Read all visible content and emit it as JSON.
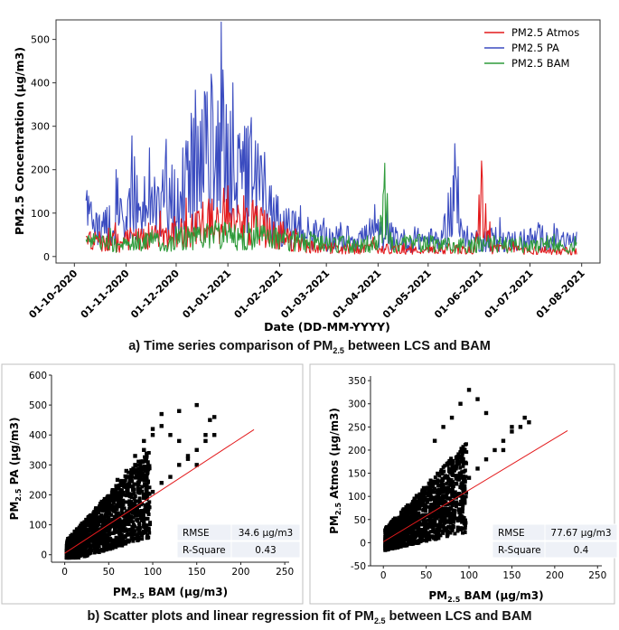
{
  "captions": {
    "a_pre": "a) Time series comparison of PM",
    "a_sub": "2.5",
    "a_post": " between LCS and BAM",
    "b_pre": "b) Scatter plots and linear regression fit of PM",
    "b_sub": "2.5",
    "b_post": " between LCS and BAM"
  },
  "chart_data": [
    {
      "type": "line",
      "title": "",
      "xlabel": "Date (DD-MM-YYYY)",
      "ylabel": "PM2.5 Concentration (µg/m3)",
      "x_tick_labels": [
        "01-10-2020",
        "01-11-2020",
        "01-12-2020",
        "01-01-2021",
        "01-02-2021",
        "01-03-2021",
        "01-04-2021",
        "01-05-2021",
        "01-06-2021",
        "01-07-2021",
        "01-08-2021"
      ],
      "x_tick_days": [
        0,
        31,
        61,
        92,
        123,
        151,
        182,
        212,
        243,
        273,
        304
      ],
      "xlim_days": [
        -11,
        315
      ],
      "ylim": [
        -15,
        545
      ],
      "y_ticks": [
        0,
        100,
        200,
        300,
        400,
        500
      ],
      "legend_position": "top-right",
      "series": [
        {
          "name": "PM2.5 Atmos",
          "color": "#e31a1c",
          "days": [
            7,
            14,
            21,
            28,
            35,
            42,
            49,
            56,
            63,
            70,
            77,
            84,
            88,
            91,
            95,
            100,
            105,
            110,
            115,
            120,
            125,
            130,
            135,
            140,
            145,
            150,
            160,
            170,
            180,
            190,
            200,
            210,
            220,
            230,
            240,
            244,
            250,
            260,
            270,
            280,
            290,
            300
          ],
          "values": [
            60,
            55,
            70,
            45,
            80,
            75,
            90,
            70,
            110,
            95,
            130,
            140,
            150,
            190,
            120,
            160,
            130,
            140,
            100,
            90,
            80,
            60,
            55,
            40,
            40,
            35,
            30,
            30,
            35,
            30,
            25,
            28,
            30,
            30,
            28,
            220,
            30,
            28,
            25,
            25,
            22,
            20
          ]
        },
        {
          "name": "PM2.5 PA",
          "color": "#3b4cc0",
          "days": [
            7,
            12,
            16,
            20,
            25,
            30,
            36,
            40,
            45,
            50,
            55,
            60,
            65,
            70,
            74,
            78,
            82,
            85,
            88,
            91,
            95,
            98,
            102,
            106,
            110,
            114,
            118,
            122,
            126,
            130,
            135,
            140,
            145,
            150,
            160,
            170,
            180,
            190,
            200,
            210,
            220,
            228,
            232,
            236,
            240,
            250,
            260,
            270,
            280,
            290,
            300
          ],
          "values": [
            180,
            120,
            150,
            110,
            200,
            150,
            230,
            160,
            250,
            180,
            270,
            200,
            250,
            330,
            300,
            380,
            420,
            300,
            540,
            350,
            400,
            280,
            300,
            320,
            260,
            240,
            180,
            150,
            130,
            110,
            100,
            90,
            80,
            75,
            70,
            75,
            90,
            80,
            60,
            70,
            60,
            260,
            75,
            70,
            65,
            70,
            60,
            65,
            75,
            65,
            60
          ]
        },
        {
          "name": "PM2.5 BAM",
          "color": "#2e9b3a",
          "days": [
            7,
            14,
            21,
            28,
            35,
            42,
            49,
            56,
            63,
            70,
            77,
            84,
            91,
            98,
            105,
            112,
            119,
            126,
            133,
            140,
            147,
            154,
            161,
            168,
            175,
            182,
            186,
            190,
            200,
            210,
            220,
            230,
            240,
            250,
            260,
            270,
            280,
            290,
            300
          ],
          "values": [
            60,
            50,
            55,
            40,
            65,
            60,
            70,
            55,
            75,
            70,
            80,
            90,
            85,
            70,
            80,
            75,
            70,
            65,
            60,
            55,
            50,
            45,
            50,
            45,
            40,
            55,
            215,
            45,
            50,
            55,
            45,
            40,
            45,
            50,
            45,
            40,
            45,
            40,
            35
          ]
        }
      ]
    },
    {
      "type": "scatter",
      "xlabel_main": "PM",
      "xlabel_sub": "2.5",
      "xlabel_post": " BAM (µg/m3)",
      "ylabel_main": "PM",
      "ylabel_sub": "2.5",
      "ylabel_post": " PA (µg/m3)",
      "xlim": [
        -15,
        255
      ],
      "ylim": [
        -25,
        600
      ],
      "x_ticks": [
        0,
        50,
        100,
        150,
        200,
        250
      ],
      "y_ticks": [
        0,
        100,
        200,
        300,
        400,
        500,
        600
      ],
      "regression": {
        "x": [
          0,
          215
        ],
        "y": [
          5,
          418
        ]
      },
      "stats": [
        {
          "label": "RMSE",
          "value": "34.6 µg/m3"
        },
        {
          "label": "R-Square",
          "value": "0.43"
        }
      ],
      "points_x": [
        10,
        20,
        30,
        40,
        50,
        60,
        70,
        80,
        90,
        100,
        110,
        120,
        130,
        140,
        150,
        160,
        170,
        80,
        90,
        100,
        110,
        120,
        130,
        140,
        150,
        160,
        170,
        60,
        70,
        80,
        90,
        100,
        110,
        130,
        150,
        165
      ],
      "points_y": [
        20,
        40,
        60,
        80,
        90,
        120,
        140,
        160,
        190,
        210,
        240,
        260,
        300,
        320,
        350,
        380,
        400,
        300,
        350,
        400,
        430,
        400,
        380,
        330,
        300,
        400,
        460,
        250,
        280,
        330,
        380,
        420,
        470,
        480,
        500,
        450
      ]
    },
    {
      "type": "scatter",
      "xlabel_main": "PM",
      "xlabel_sub": "2.5",
      "xlabel_post": " BAM (µg/m3)",
      "ylabel_main": "PM",
      "ylabel_sub": "2.5",
      "ylabel_post": " Atmos (µg/m3)",
      "xlim": [
        -15,
        255
      ],
      "ylim": [
        -50,
        360
      ],
      "x_ticks": [
        0,
        50,
        100,
        150,
        200,
        250
      ],
      "y_ticks": [
        -50,
        0,
        50,
        100,
        150,
        200,
        250,
        300,
        350
      ],
      "regression": {
        "x": [
          0,
          215
        ],
        "y": [
          2,
          242
        ]
      },
      "stats": [
        {
          "label": "RMSE",
          "value": "77.67 µg/m3"
        },
        {
          "label": "R-Square",
          "value": "0.4"
        }
      ],
      "points_x": [
        10,
        20,
        30,
        40,
        50,
        60,
        70,
        80,
        90,
        100,
        110,
        120,
        130,
        140,
        150,
        160,
        170,
        60,
        70,
        80,
        90,
        100,
        110,
        120,
        150,
        165,
        140
      ],
      "points_y": [
        10,
        20,
        35,
        50,
        60,
        80,
        100,
        110,
        120,
        140,
        160,
        180,
        200,
        220,
        240,
        250,
        260,
        220,
        250,
        270,
        300,
        330,
        310,
        280,
        250,
        270,
        200
      ]
    }
  ]
}
